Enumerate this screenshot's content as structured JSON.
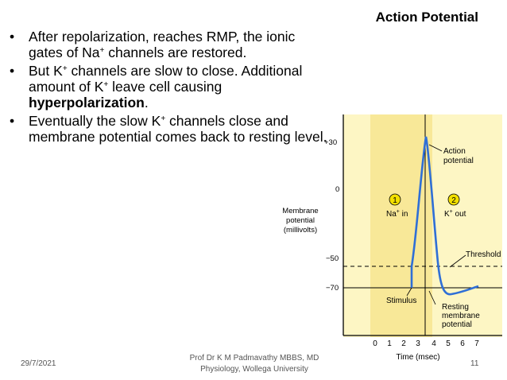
{
  "slide": {
    "title": "Action Potential",
    "bullets": [
      {
        "parts": [
          {
            "text": "After repolarization, reaches RMP, the ionic gates of Na"
          },
          {
            "text": "+",
            "sup": true
          },
          {
            "text": " channels are restored."
          }
        ]
      },
      {
        "parts": [
          {
            "text": "But K"
          },
          {
            "text": "+",
            "sup": true
          },
          {
            "text": " channels are slow to close. Additional amount of K"
          },
          {
            "text": "+",
            "sup": true
          },
          {
            "text": " leave cell causing "
          },
          {
            "text": "hyperpolarization",
            "bold": true
          },
          {
            "text": "."
          }
        ]
      },
      {
        "parts": [
          {
            "text": "Eventually the slow K"
          },
          {
            "text": "+",
            "sup": true
          },
          {
            "text": " channels close and membrane potential comes back to resting level."
          }
        ]
      }
    ],
    "footer": {
      "date": "29/7/2021",
      "author_line1": "Prof Dr K M Padmavathy MBBS, MD",
      "author_line2": "Physiology, Wollega University",
      "page": "11"
    }
  },
  "diagram": {
    "ylabel_lines": [
      "Membrane",
      "potential",
      "(millivolts)"
    ],
    "xlabel": "Time (msec)",
    "y_ticks": [
      "+30",
      "0",
      "−50",
      "−70"
    ],
    "x_ticks": [
      "0",
      "1",
      "2",
      "3",
      "4",
      "5",
      "6",
      "7"
    ],
    "labels": {
      "action_potential_line1": "Action",
      "action_potential_line2": "potential",
      "phase1_number": "1",
      "phase1_label": "Na",
      "phase1_label_sup": "+",
      "phase1_label_rest": " in",
      "phase2_number": "2",
      "phase2_label": "K",
      "phase2_label_sup": "+",
      "phase2_label_rest": " out",
      "threshold": "Threshold",
      "stimulus": "Stimulus",
      "resting_line1": "Resting",
      "resting_line2": "membrane",
      "resting_line3": "potential"
    },
    "colors": {
      "background": "#fdf6c4",
      "highlight": "#f5e38a",
      "curve": "#2f6fd6",
      "number_circle": "#f3e000"
    }
  }
}
